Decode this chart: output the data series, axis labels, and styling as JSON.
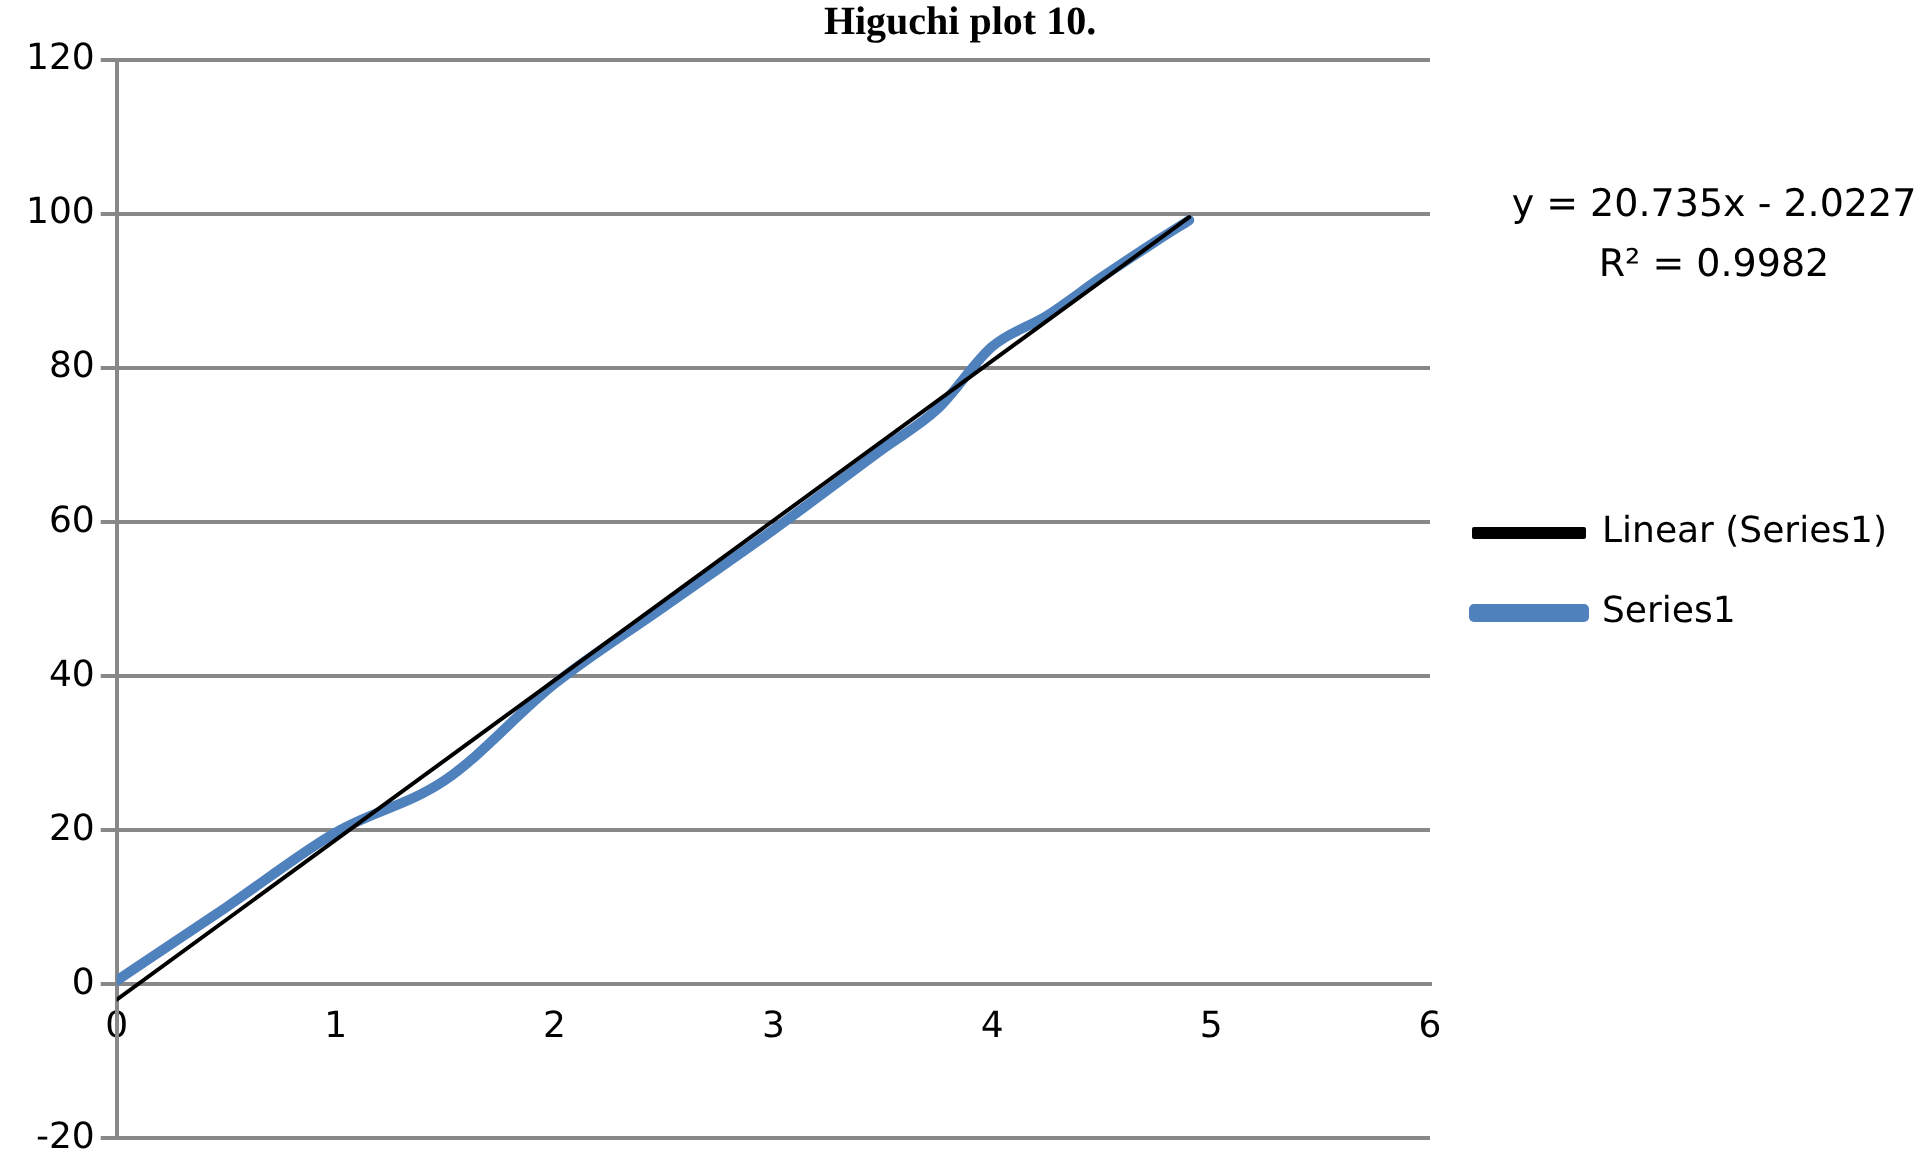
{
  "chart_data": {
    "type": "line",
    "title": "Higuchi plot 10.",
    "x": [
      0,
      0.5,
      1,
      1.5,
      2,
      2.5,
      3,
      3.5,
      3.75,
      4,
      4.25,
      4.5,
      4.75,
      4.9
    ],
    "series": [
      {
        "name": "Series1",
        "color": "#4f81bd",
        "values": [
          0.5,
          10,
          19.7,
          26.5,
          39,
          49,
          59,
          69.5,
          74.7,
          82.8,
          86.8,
          91.8,
          96.5,
          99.2
        ]
      },
      {
        "name": "Linear (Series1)",
        "type": "line",
        "color": "#000000",
        "x": [
          0,
          4.9
        ],
        "values": [
          -2,
          99.6
        ]
      }
    ],
    "xlim": [
      0,
      6
    ],
    "xticks": [
      0,
      1,
      2,
      3,
      4,
      5,
      6
    ],
    "ylim": [
      -20,
      120
    ],
    "yticks": [
      -20,
      0,
      20,
      40,
      60,
      80,
      100,
      120
    ],
    "grid": "y",
    "legend": "right",
    "marker": "none",
    "line_style": "solid",
    "annotations": [
      "y = 20.735x - 2.0227",
      "R² = 0.9982"
    ]
  }
}
